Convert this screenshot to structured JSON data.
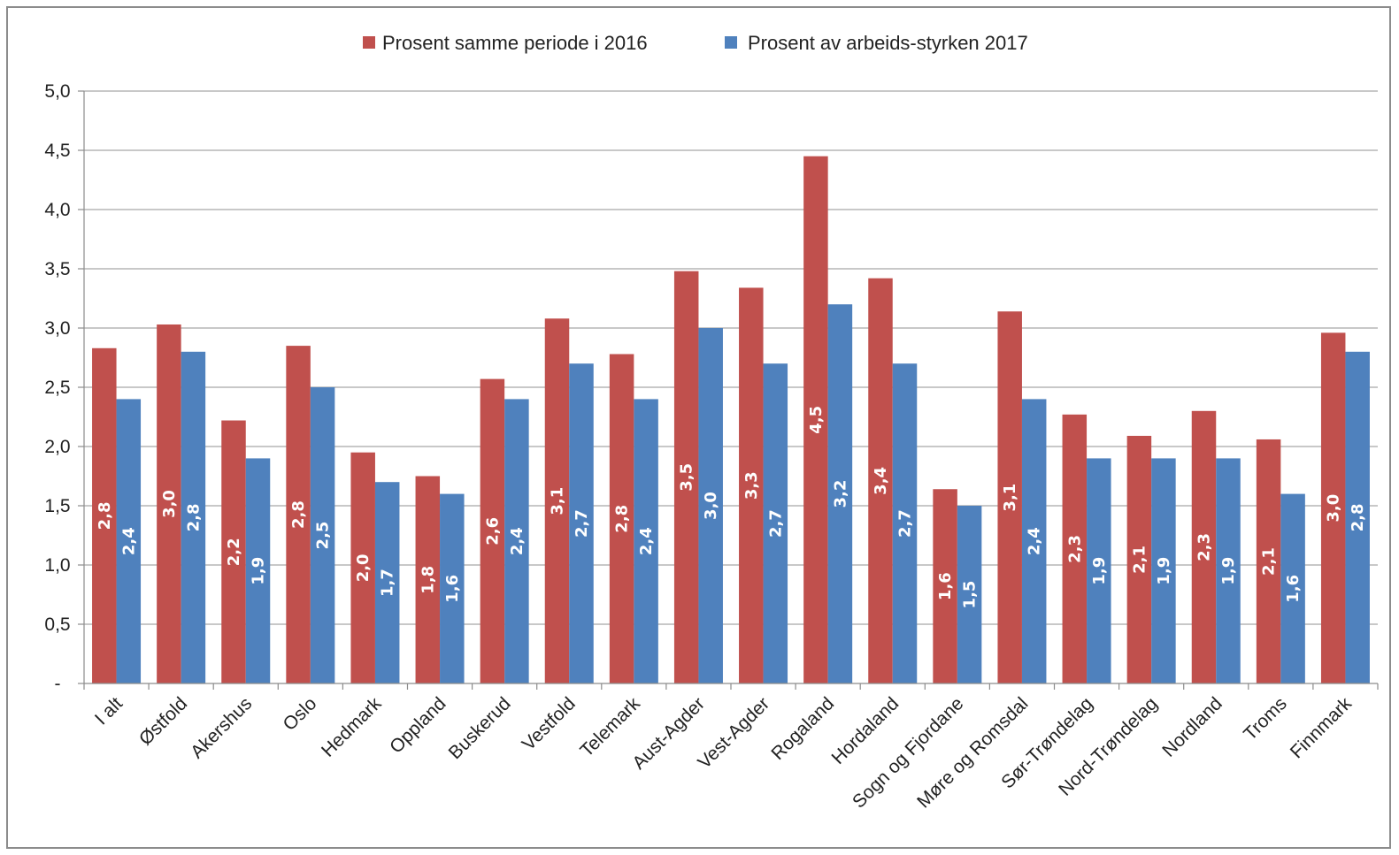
{
  "chart_data": {
    "type": "bar",
    "title": "",
    "xlabel": "",
    "ylabel": "",
    "ylim": [
      0,
      5
    ],
    "y_ticks": [
      "-",
      "0,5",
      "1,0",
      "1,5",
      "2,0",
      "2,5",
      "3,0",
      "3,5",
      "4,0",
      "4,5",
      "5,0"
    ],
    "grid": true,
    "legend_position": "top-center",
    "categories": [
      "I alt",
      "Østfold",
      "Akershus",
      "Oslo",
      "Hedmark",
      "Oppland",
      "Buskerud",
      "Vestfold",
      "Telemark",
      "Aust-Agder",
      "Vest-Agder",
      "Rogaland",
      "Hordaland",
      "Sogn og Fjordane",
      "Møre og Romsdal",
      "Sør-Trøndelag",
      "Nord-Trøndelag",
      "Nordland",
      "Troms",
      "Finnmark"
    ],
    "series": [
      {
        "name": "Prosent samme periode i 2016",
        "color": "#c0504d",
        "values": [
          2.83,
          3.03,
          2.22,
          2.85,
          1.95,
          1.75,
          2.57,
          3.08,
          2.78,
          3.48,
          3.34,
          4.45,
          3.42,
          1.64,
          3.14,
          2.27,
          2.09,
          2.3,
          2.06,
          2.96
        ],
        "labels": [
          "2,8",
          "3,0",
          "2,2",
          "2,8",
          "2,0",
          "1,8",
          "2,6",
          "3,1",
          "2,8",
          "3,5",
          "3,3",
          "4,5",
          "3,4",
          "1,6",
          "3,1",
          "2,3",
          "2,1",
          "2,3",
          "2,1",
          "3,0"
        ]
      },
      {
        "name": "Prosent av arbeids-styrken 2017",
        "color": "#4f81bd",
        "values": [
          2.4,
          2.8,
          1.9,
          2.5,
          1.7,
          1.6,
          2.4,
          2.7,
          2.4,
          3.0,
          2.7,
          3.2,
          2.7,
          1.5,
          2.4,
          1.9,
          1.9,
          1.9,
          1.6,
          2.8
        ],
        "labels": [
          "2,4",
          "2,8",
          "1,9",
          "2,5",
          "1,7",
          "1,6",
          "2,4",
          "2,7",
          "2,4",
          "3,0",
          "2,7",
          "3,2",
          "2,7",
          "1,5",
          "2,4",
          "1,9",
          "1,9",
          "1,9",
          "1,6",
          "2,8"
        ]
      }
    ]
  }
}
